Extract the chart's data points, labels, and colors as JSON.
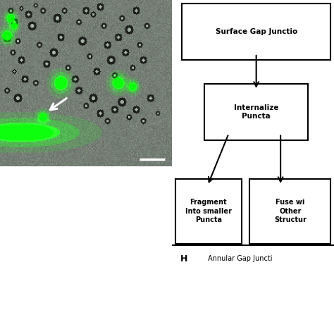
{
  "fig_width": 4.74,
  "fig_height": 4.74,
  "fig_dpi": 100,
  "bg_color": "#ffffff",
  "flowchart": {
    "title": "Surface Gap Junctio",
    "node1": "Internalize\nPuncta",
    "node2_left": "Fragment\nInto smaller\nPuncta",
    "node2_right": "Fuse wi\nOther\nStructur",
    "footer_label": "H",
    "footer_text": "Annular Gap Juncti"
  }
}
